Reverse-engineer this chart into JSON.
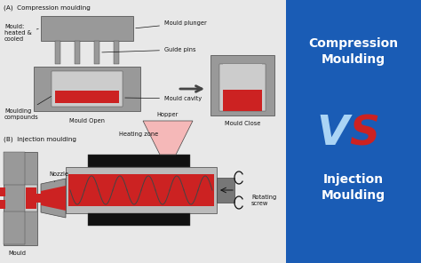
{
  "bg_left": "#e8e8e8",
  "bg_right": "#1a5cb5",
  "gray": "#999999",
  "dark_gray": "#444444",
  "mid_gray": "#777777",
  "light_gray": "#bbbbbb",
  "lighter_gray": "#cccccc",
  "red": "#cc2222",
  "black": "#111111",
  "white": "#ffffff",
  "light_blue_vs": "#aad4f5",
  "red_vs": "#cc2222",
  "pink": "#f5b8b8",
  "title_compression": "Compression\nMoulding",
  "title_injection": "Injection\nMoulding",
  "label_A": "(A)  Compression moulding",
  "label_B": "(B)  Injection moulding",
  "ann_mould_heated": "Mould:\nheated &\ncooled",
  "ann_mould_plunger": "Mould plunger",
  "ann_guide_pins": "Guide pins",
  "ann_mould_cavity": "Mould cavity",
  "ann_moulding_compounds": "Moulding\ncompounds",
  "ann_mould_open": "Mould Open",
  "ann_mould_close": "Mould Close",
  "ann_nozzle": "Nozzle",
  "ann_mould_inj": "Mould",
  "ann_heating_zone": "Heating zone",
  "ann_hopper": "Hopper",
  "ann_rotating_screw": "Rotating\nscrew",
  "figsize": [
    4.74,
    2.96
  ],
  "dpi": 100
}
